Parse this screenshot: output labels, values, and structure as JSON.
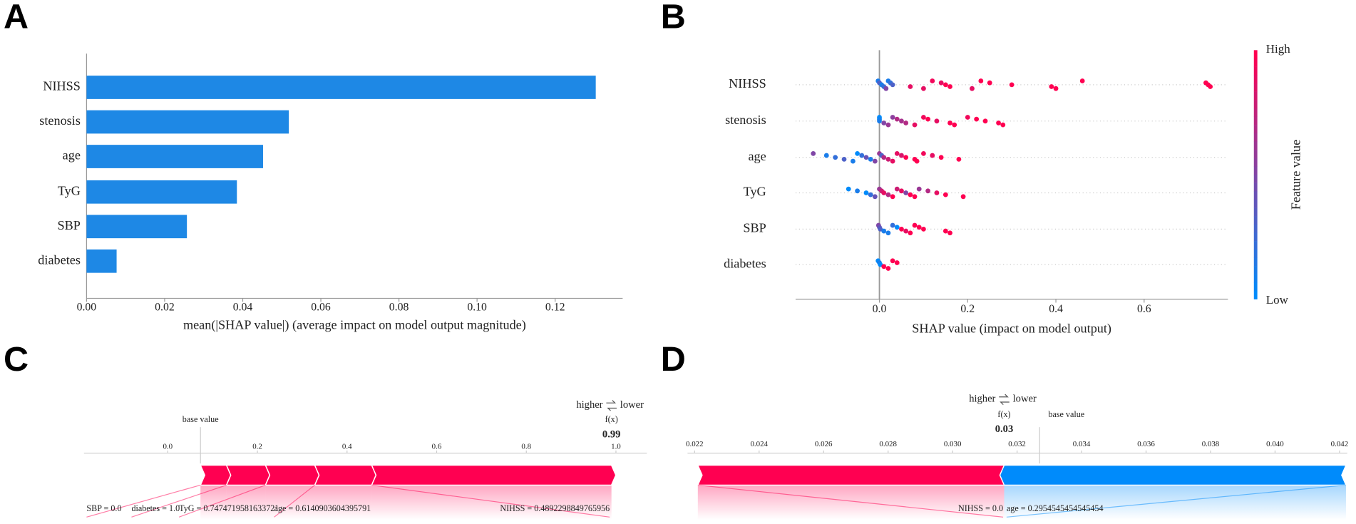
{
  "chart_data": [
    {
      "type": "bar",
      "panel_label": "A",
      "orientation": "horizontal",
      "color": "#1e88e5",
      "categories": [
        "NIHSS",
        "stenosis",
        "age",
        "TyG",
        "SBP",
        "diabetes"
      ],
      "values": [
        0.1304,
        0.0518,
        0.0452,
        0.0385,
        0.0257,
        0.0077
      ],
      "xlabel": "mean(|SHAP value|) (average impact on model output magnitude)",
      "xlim": [
        0,
        0.137
      ],
      "xticks": [
        {
          "value": 0,
          "label": "0.00"
        },
        {
          "value": 0.02,
          "label": "0.02"
        },
        {
          "value": 0.04,
          "label": "0.04"
        },
        {
          "value": 0.06,
          "label": "0.06"
        },
        {
          "value": 0.08,
          "label": "0.08"
        },
        {
          "value": 0.1,
          "label": "0.10"
        },
        {
          "value": 0.12,
          "label": "0.12"
        }
      ]
    },
    {
      "type": "beeswarm",
      "panel_label": "B",
      "categories": [
        "NIHSS",
        "stenosis",
        "age",
        "TyG",
        "SBP",
        "diabetes"
      ],
      "values": [
        [
          -0.003,
          0.0,
          0.005,
          0.01,
          0.015,
          0.02,
          0.025,
          0.03,
          0.07,
          0.1,
          0.12,
          0.14,
          0.15,
          0.16,
          0.21,
          0.23,
          0.25,
          0.3,
          0.39,
          0.4,
          0.46,
          0.74,
          0.745,
          0.75
        ],
        [
          0.0,
          0.0,
          0.0,
          0.01,
          0.02,
          0.03,
          0.04,
          0.05,
          0.06,
          0.08,
          0.1,
          0.11,
          0.13,
          0.16,
          0.17,
          0.2,
          0.22,
          0.24,
          0.27,
          0.28
        ],
        [
          -0.15,
          -0.12,
          -0.1,
          -0.08,
          -0.06,
          -0.05,
          -0.04,
          -0.03,
          -0.02,
          -0.01,
          0.0,
          0.005,
          0.01,
          0.02,
          0.03,
          0.04,
          0.05,
          0.06,
          0.08,
          0.085,
          0.1,
          0.12,
          0.14,
          0.18
        ],
        [
          -0.07,
          -0.05,
          -0.03,
          -0.02,
          -0.01,
          0.0,
          0.005,
          0.01,
          0.02,
          0.03,
          0.04,
          0.05,
          0.06,
          0.07,
          0.08,
          0.09,
          0.11,
          0.13,
          0.15,
          0.19
        ],
        [
          -0.002,
          0.0,
          0.002,
          0.01,
          0.02,
          0.03,
          0.04,
          0.05,
          0.06,
          0.07,
          0.08,
          0.09,
          0.1,
          0.15,
          0.16
        ],
        [
          -0.003,
          0.0,
          0.002,
          0.01,
          0.02,
          0.03,
          0.04
        ]
      ],
      "feature_values": [
        [
          0.1,
          0.3,
          0.1,
          0.2,
          0.5,
          0.1,
          0.2,
          0.3,
          0.9,
          0.9,
          0.95,
          0.9,
          1,
          1,
          0.9,
          1,
          1,
          1,
          1,
          1,
          1,
          1,
          1,
          1
        ],
        [
          0,
          0.05,
          0.1,
          0.5,
          0.6,
          0.55,
          0.7,
          0.65,
          0.7,
          0.9,
          0.95,
          1,
          0.9,
          1,
          1,
          0.95,
          1,
          1,
          1,
          1
        ],
        [
          0.5,
          0.1,
          0.2,
          0.3,
          0.1,
          0,
          0.2,
          0.4,
          0.1,
          0.5,
          0.6,
          0.3,
          0.7,
          0.8,
          0.9,
          0.9,
          0.85,
          1,
          1,
          1,
          0.95,
          0.9,
          1,
          1
        ],
        [
          0,
          0.1,
          0,
          0.2,
          0.4,
          0.6,
          0.8,
          0.9,
          0.7,
          1,
          0.8,
          0.9,
          0.5,
          1,
          1,
          0.6,
          0.7,
          0.9,
          1,
          1
        ],
        [
          0.5,
          0.4,
          0.3,
          0.1,
          0.1,
          0.2,
          0,
          1,
          0.9,
          1,
          1,
          1,
          1,
          1,
          1
        ],
        [
          0,
          0.1,
          0,
          1,
          1,
          1,
          1
        ]
      ],
      "colors": {
        "low": "#008bfb",
        "high": "#ff0051"
      },
      "colorbar": {
        "label": "Feature value",
        "high": "High",
        "low": "Low"
      },
      "xlabel": "SHAP value (impact on model output)",
      "xlim": [
        -0.19,
        0.79
      ],
      "xticks": [
        {
          "value": 0,
          "label": "0.0"
        },
        0.2,
        0.4,
        0.6
      ]
    },
    {
      "type": "force",
      "panel_label": "C",
      "higher_label": "higher",
      "lower_label": "lower",
      "base_label": "base value",
      "fx_name": "f(x)",
      "base_value": 0.073,
      "fx": 0.99,
      "features": [
        {
          "label": "SBP = 0.0",
          "value": 0.058
        },
        {
          "label": "diabetes = 1.0",
          "value": 0.087
        },
        {
          "label": "TyG = 0.7474719581633721",
          "value": 0.11
        },
        {
          "label": "age = 0.6140903604395791",
          "value": 0.127
        },
        {
          "label": "NIHSS = 0.4892298849765956",
          "value": 0.535
        }
      ],
      "colors": {
        "higher": "#ff0051",
        "lower": "#008bfb"
      },
      "xlim": [
        -0.187,
        1.069
      ],
      "xticks": [
        {
          "value": 0,
          "label": "0.0"
        },
        0.2,
        0.4,
        0.6,
        0.8,
        {
          "value": 1,
          "label": "1.0"
        }
      ]
    },
    {
      "type": "force",
      "panel_label": "D",
      "higher_label": "higher",
      "lower_label": "lower",
      "base_label": "base value",
      "fx_name": "f(x)",
      "base_value": 0.0327,
      "fx": 0.0316,
      "fx_value_label": "0.03",
      "features": [
        {
          "label": "NIHSS = 0.0",
          "value": 0.0095
        },
        {
          "label": "age = 0.2954545454545454",
          "value": -0.0106
        }
      ],
      "colors": {
        "higher": "#ff0051",
        "lower": "#008bfb"
      },
      "xlim": [
        0.02178,
        0.04224
      ],
      "xticks": [
        0.022,
        0.024,
        0.026,
        0.028,
        {
          "value": 0.03,
          "label": "0.030"
        },
        0.032,
        0.034,
        0.036,
        0.038,
        {
          "value": 0.04,
          "label": "0.040"
        },
        0.042
      ]
    }
  ]
}
